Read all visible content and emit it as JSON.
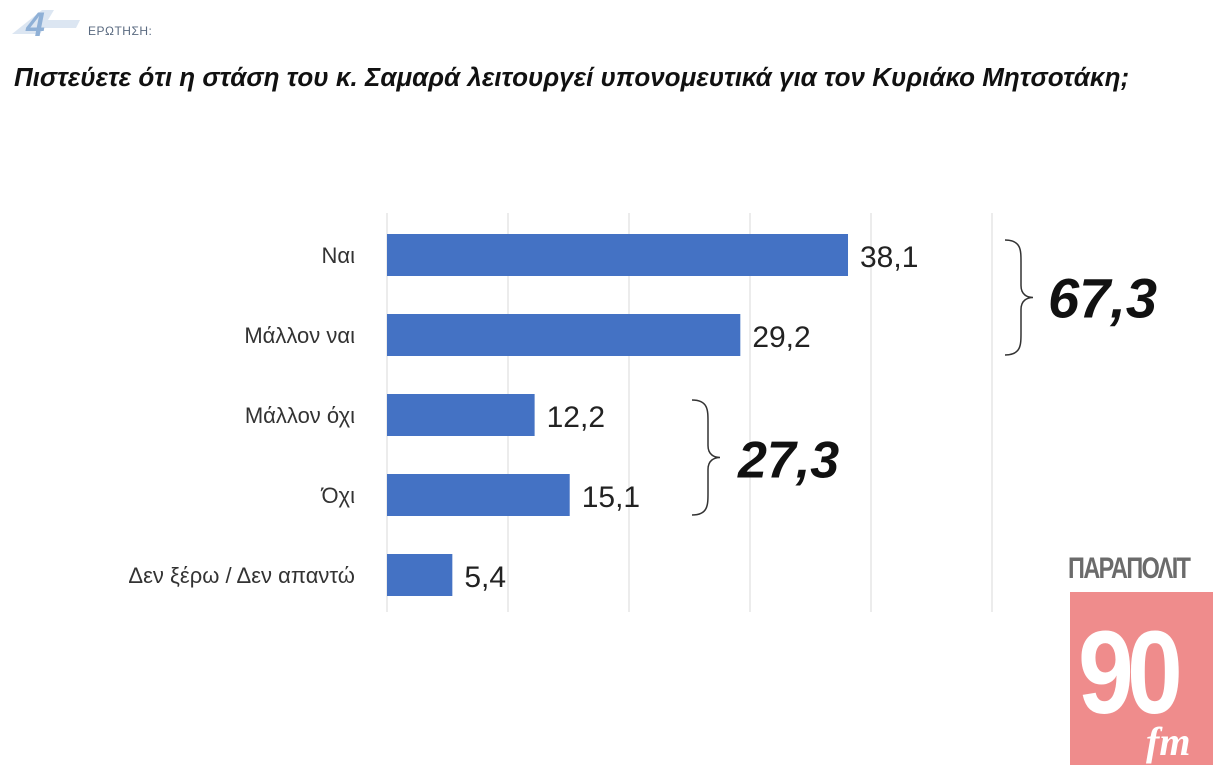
{
  "header": {
    "question_number": "4",
    "question_label": "ΕΡΩΤΗΣΗ:",
    "question_text": "Πιστεύετε ότι η στάση του κ. Σαμαρά λειτουργεί υπονομευτικά για τον Κυριάκο Μητσοτάκη;"
  },
  "colors": {
    "bar": "#4472c4",
    "grid": "#d9d9d9",
    "text": "#333333",
    "number_badge": "#9bb7d9"
  },
  "chart_data": {
    "type": "bar",
    "orientation": "horizontal",
    "categories": [
      "Ναι",
      "Μάλλον ναι",
      "Μάλλον όχι",
      "Όχι",
      "Δεν ξέρω / Δεν απαντώ"
    ],
    "values": [
      38.1,
      29.2,
      12.2,
      15.1,
      5.4
    ],
    "value_labels": [
      "38,1",
      "29,2",
      "12,2",
      "15,1",
      "5,4"
    ],
    "xlim": [
      0,
      50
    ],
    "grid": true,
    "groups": [
      {
        "label": "67,3",
        "categories": [
          "Ναι",
          "Μάλλον ναι"
        ]
      },
      {
        "label": "27,3",
        "categories": [
          "Μάλλον όχι",
          "Όχι"
        ]
      }
    ]
  },
  "logo": {
    "top_text": "ΠΑΡΑΠΟΛΙΤ",
    "number": "90",
    "suffix": "fm"
  }
}
